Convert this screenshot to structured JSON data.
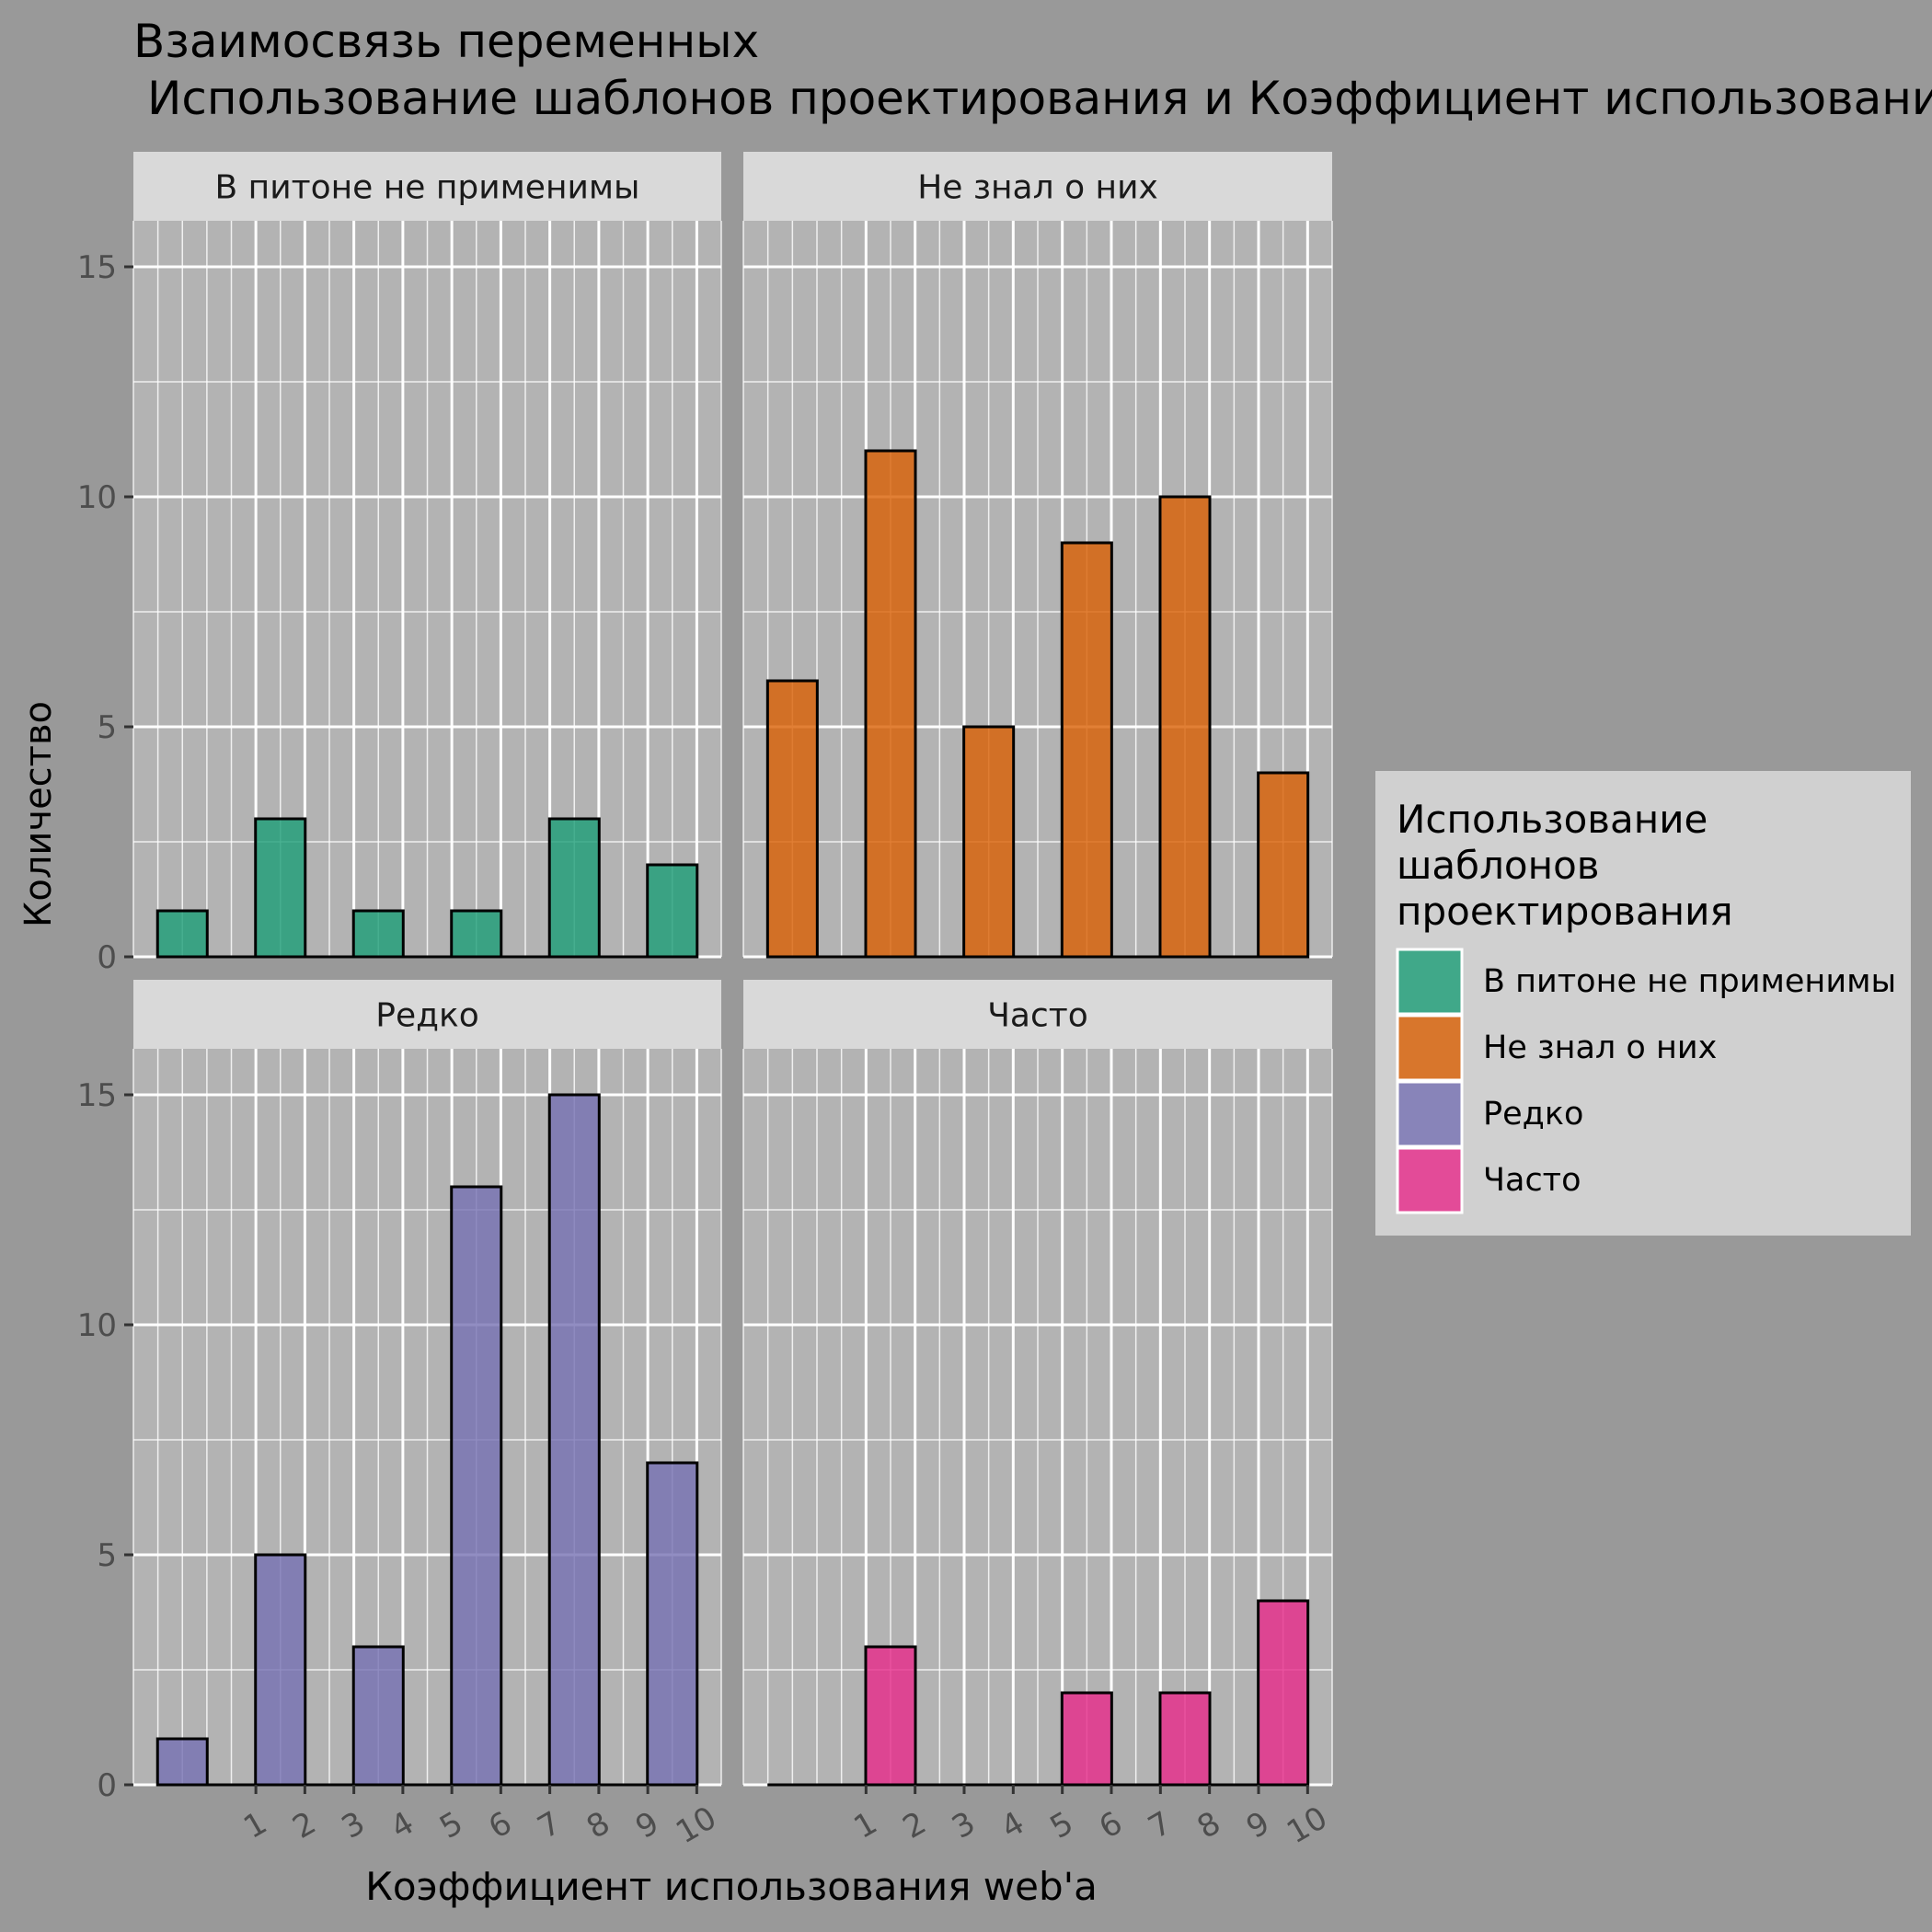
{
  "chart_data": {
    "type": "bar",
    "title_line1": "Взаимосвязь переменных",
    "title_line2": "Использование шаблонов проектирования и Коэффициент использования web'a",
    "xlabel": "Коэффициент использования web'a",
    "ylabel": "Количество",
    "x_ticks": [
      "1",
      "2",
      "3",
      "4",
      "5",
      "6",
      "7",
      "8",
      "9",
      "10"
    ],
    "y_ticks": [
      "0",
      "5",
      "10",
      "15"
    ],
    "ylim": [
      0,
      16
    ],
    "x_range": [
      -1.5,
      10.5
    ],
    "bar_x": [
      -0.5,
      1.5,
      3.5,
      5.5,
      7.5,
      9.5
    ],
    "bar_x_note_free": true,
    "legend": {
      "title_lines": [
        "Использование",
        "шаблонов",
        "проектирования"
      ],
      "position": "right"
    },
    "panels": [
      {
        "name": "В питоне не применимы",
        "color": "#1b9e77",
        "values": [
          1,
          3,
          1,
          1,
          3,
          2
        ]
      },
      {
        "name": "Не знал о них",
        "color": "#d95f02",
        "values": [
          6,
          11,
          5,
          9,
          10,
          4
        ]
      },
      {
        "name": "Редко",
        "color": "#7570b3",
        "values": [
          1,
          5,
          3,
          13,
          15,
          7
        ]
      },
      {
        "name": "Часто",
        "color": "#e7298a",
        "values": [
          0,
          3,
          0,
          2,
          2,
          4
        ]
      }
    ]
  }
}
